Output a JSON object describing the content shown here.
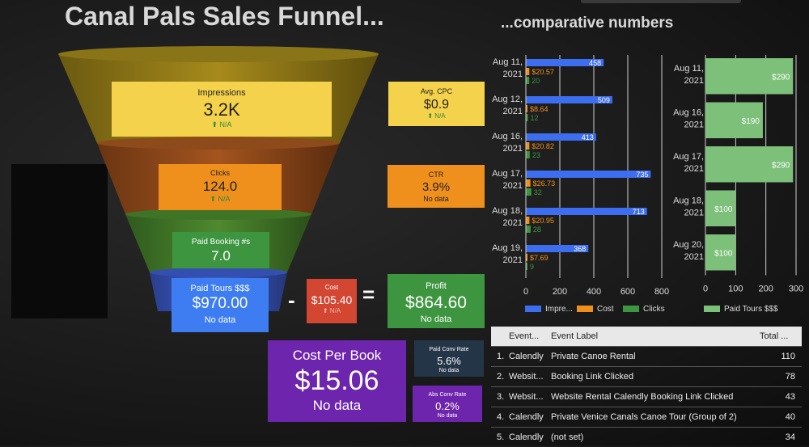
{
  "title": "Canal Pals Sales Funnel...",
  "subtitle": "...comparative numbers",
  "cards": {
    "impressions": {
      "label": "Impressions",
      "value": "3.2K",
      "sub": "⬆ N/A"
    },
    "avg_cpc": {
      "label": "Avg. CPC",
      "value": "$0.9",
      "sub": "⬆ N/A"
    },
    "clicks": {
      "label": "Clicks",
      "value": "124.0",
      "sub": "⬆ N/A"
    },
    "ctr": {
      "label": "CTR",
      "value": "3.9%",
      "sub": "No data"
    },
    "paid_booking": {
      "label": "Paid Booking #s",
      "value": "7.0"
    },
    "paid_tours": {
      "label": "Paid Tours $$$",
      "value": "$970.00",
      "sub": "No data"
    },
    "cost": {
      "label": "Cost",
      "value": "$105.40",
      "sub": "⬆ N/A"
    },
    "profit": {
      "label": "Profit",
      "value": "$864.60",
      "sub": "No data"
    },
    "cost_per_book": {
      "label": "Cost Per Book",
      "value": "$15.06",
      "sub": "No data"
    },
    "paid_conv_rate": {
      "label": "Paid Conv Rate",
      "value": "5.6%",
      "sub": "No data"
    },
    "abs_conv_rate": {
      "label": "Abs Conv Rate",
      "value": "0.2%",
      "sub": "No data"
    }
  },
  "operators": {
    "minus": "-",
    "equals": "="
  },
  "colors": {
    "impressions": "#3d6ef0",
    "cost": "#f0901c",
    "clicks": "#3e9540",
    "paid_tours": "#7cc07a",
    "yellow": "#f5d24b",
    "purple": "#6e25ad"
  },
  "chart_data": [
    {
      "type": "bar",
      "orientation": "horizontal",
      "categories": [
        "Aug 11, 2021",
        "Aug 12, 2021",
        "Aug 16, 2021",
        "Aug 17, 2021",
        "Aug 18, 2021",
        "Aug 19, 2021"
      ],
      "series": [
        {
          "name": "Impre...",
          "values": [
            458,
            509,
            413,
            735,
            713,
            368
          ],
          "labels": [
            "458",
            "509",
            "413",
            "735",
            "713",
            "368"
          ]
        },
        {
          "name": "Cost",
          "values": [
            20.57,
            8.64,
            20.82,
            26.73,
            20.95,
            7.69
          ],
          "labels": [
            "$20.57",
            "$8.64",
            "$20.82",
            "$26.73",
            "$20.95",
            "$7.69"
          ]
        },
        {
          "name": "Clicks",
          "values": [
            20,
            12,
            23,
            32,
            28,
            9
          ],
          "labels": [
            "20",
            "12",
            "23",
            "32",
            "28",
            "9"
          ]
        }
      ],
      "xticks": [
        "0",
        "200",
        "400",
        "600",
        "800"
      ],
      "xlim": [
        0,
        800
      ],
      "legend": "bottom"
    },
    {
      "type": "bar",
      "orientation": "horizontal",
      "categories": [
        "Aug 11, 2021",
        "Aug 16, 2021",
        "Aug 17, 2021",
        "Aug 18, 2021",
        "Aug 20, 2021"
      ],
      "series": [
        {
          "name": "Paid Tours $$$",
          "values": [
            290,
            190,
            290,
            100,
            100
          ],
          "labels": [
            "$290",
            "$190",
            "$290",
            "$100",
            "$100"
          ]
        }
      ],
      "xticks": [
        "0",
        "100",
        "200",
        "300"
      ],
      "xlim": [
        0,
        300
      ],
      "legend": "bottom"
    }
  ],
  "table": {
    "columns": [
      "Event...",
      "Event Label",
      "Total ..."
    ],
    "rows": [
      {
        "num": "1.",
        "event": "Calendly",
        "label": "Private Canoe Rental",
        "total": "110"
      },
      {
        "num": "2.",
        "event": "Websit...",
        "label": "Booking Link Clicked",
        "total": "78"
      },
      {
        "num": "3.",
        "event": "Websit...",
        "label": "Website Rental Calendly Booking Link Clicked",
        "total": "43"
      },
      {
        "num": "4.",
        "event": "Calendly",
        "label": "Private Venice Canals Canoe Tour (Group of 2)",
        "total": "40"
      },
      {
        "num": "5.",
        "event": "Calendly",
        "label": "(not set)",
        "total": "34"
      }
    ]
  }
}
